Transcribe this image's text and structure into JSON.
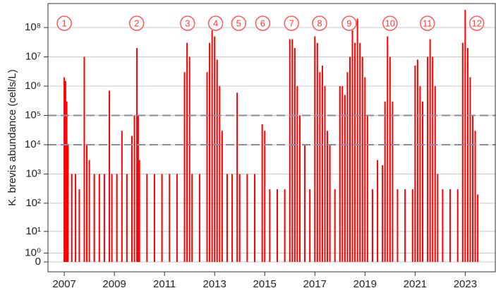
{
  "chart_data": {
    "type": "bar",
    "y_label": "K. brevis abundance (cells/L)",
    "yscale": "log1p",
    "color": "#ff0000",
    "grid": true,
    "xlim": [
      2006.35,
      2024.2
    ],
    "xticks": [
      2007,
      2009,
      2011,
      2013,
      2015,
      2017,
      2019,
      2021,
      2023
    ],
    "ylim": [
      0,
      500000000
    ],
    "yticks": [
      0,
      {
        "value": 1,
        "label": "10⁰"
      },
      {
        "value": 10,
        "label": "10¹"
      },
      {
        "value": 100,
        "label": "10²"
      },
      {
        "value": 1000,
        "label": "10³"
      },
      {
        "value": 10000,
        "label": "10⁴"
      },
      {
        "value": 100000,
        "label": "10⁵"
      },
      {
        "value": 1000000,
        "label": "10⁶"
      },
      {
        "value": 10000000,
        "label": "10⁷"
      },
      {
        "value": 100000000,
        "label": "10⁸"
      }
    ],
    "hlines": [
      100000,
      10000
    ],
    "annotations": [
      {
        "x": 2007.0,
        "label": "1"
      },
      {
        "x": 2009.89,
        "label": "2"
      },
      {
        "x": 2011.92,
        "label": "3"
      },
      {
        "x": 2013.04,
        "label": "4"
      },
      {
        "x": 2013.96,
        "label": "5"
      },
      {
        "x": 2014.92,
        "label": "6"
      },
      {
        "x": 2016.07,
        "label": "7"
      },
      {
        "x": 2017.19,
        "label": "8"
      },
      {
        "x": 2018.37,
        "label": "9"
      },
      {
        "x": 2020.0,
        "label": "10"
      },
      {
        "x": 2021.49,
        "label": "11"
      },
      {
        "x": 2023.46,
        "label": "12"
      }
    ],
    "x": [
      2007.0,
      2007.05,
      2007.1,
      2007.15,
      2007.3,
      2007.45,
      2007.6,
      2007.8,
      2007.9,
      2008.0,
      2008.2,
      2008.4,
      2008.6,
      2008.8,
      2008.9,
      2009.1,
      2009.3,
      2009.5,
      2009.7,
      2009.8,
      2009.9,
      2009.95,
      2010.0,
      2010.3,
      2010.6,
      2010.9,
      2011.2,
      2011.5,
      2011.8,
      2011.9,
      2012.0,
      2012.1,
      2012.4,
      2012.7,
      2012.8,
      2012.9,
      2013.0,
      2013.1,
      2013.2,
      2013.3,
      2013.5,
      2013.7,
      2013.9,
      2014.0,
      2014.3,
      2014.6,
      2014.9,
      2015.0,
      2015.2,
      2015.5,
      2015.8,
      2016.0,
      2016.1,
      2016.2,
      2016.3,
      2016.4,
      2016.6,
      2016.8,
      2017.0,
      2017.1,
      2017.2,
      2017.3,
      2017.4,
      2017.5,
      2017.6,
      2017.8,
      2018.0,
      2018.1,
      2018.2,
      2018.3,
      2018.4,
      2018.5,
      2018.6,
      2018.7,
      2018.8,
      2018.9,
      2019.0,
      2019.1,
      2019.3,
      2019.5,
      2019.7,
      2019.8,
      2019.9,
      2020.0,
      2020.1,
      2020.3,
      2020.6,
      2020.9,
      2021.0,
      2021.1,
      2021.2,
      2021.3,
      2021.5,
      2021.6,
      2021.7,
      2021.8,
      2021.9,
      2022.1,
      2022.4,
      2022.7,
      2022.9,
      2023.0,
      2023.1,
      2023.2,
      2023.3,
      2023.4,
      2023.5
    ],
    "values": [
      2000000,
      1500000,
      300000,
      10000,
      1000,
      1000,
      300,
      10000000,
      10000,
      3000,
      1000,
      1000,
      1000,
      700000,
      1000,
      1000,
      30000,
      1000,
      20000,
      100000,
      20000000,
      100000,
      3000,
      1000,
      1000,
      1000,
      1000,
      1000,
      3000000,
      30000000,
      10000000,
      1000,
      1000,
      3000000,
      30000000,
      80000000,
      50000000,
      8000000,
      1000000,
      30000,
      1000,
      1000,
      600000,
      1000,
      1000,
      1000,
      50000,
      30000,
      300,
      300,
      300,
      40000000,
      40000000,
      20000000,
      1000000,
      100000,
      10000,
      300,
      50000000,
      30000000,
      3000000,
      5000000,
      1000000,
      30000,
      10000,
      300,
      1000000,
      1000000,
      500000,
      3000000,
      10000000,
      80000000,
      30000000,
      200000000,
      30000000,
      10000000,
      2000000,
      100000,
      300,
      3000,
      2000,
      300000,
      50000000,
      10000000,
      300000,
      300,
      300,
      300,
      5000000,
      8000000,
      1000000,
      300000,
      10000000,
      40000000,
      10000000,
      1000000,
      1000,
      300,
      300,
      300,
      30000000,
      400000000,
      20000000,
      2000000,
      100000,
      30000,
      200
    ]
  }
}
